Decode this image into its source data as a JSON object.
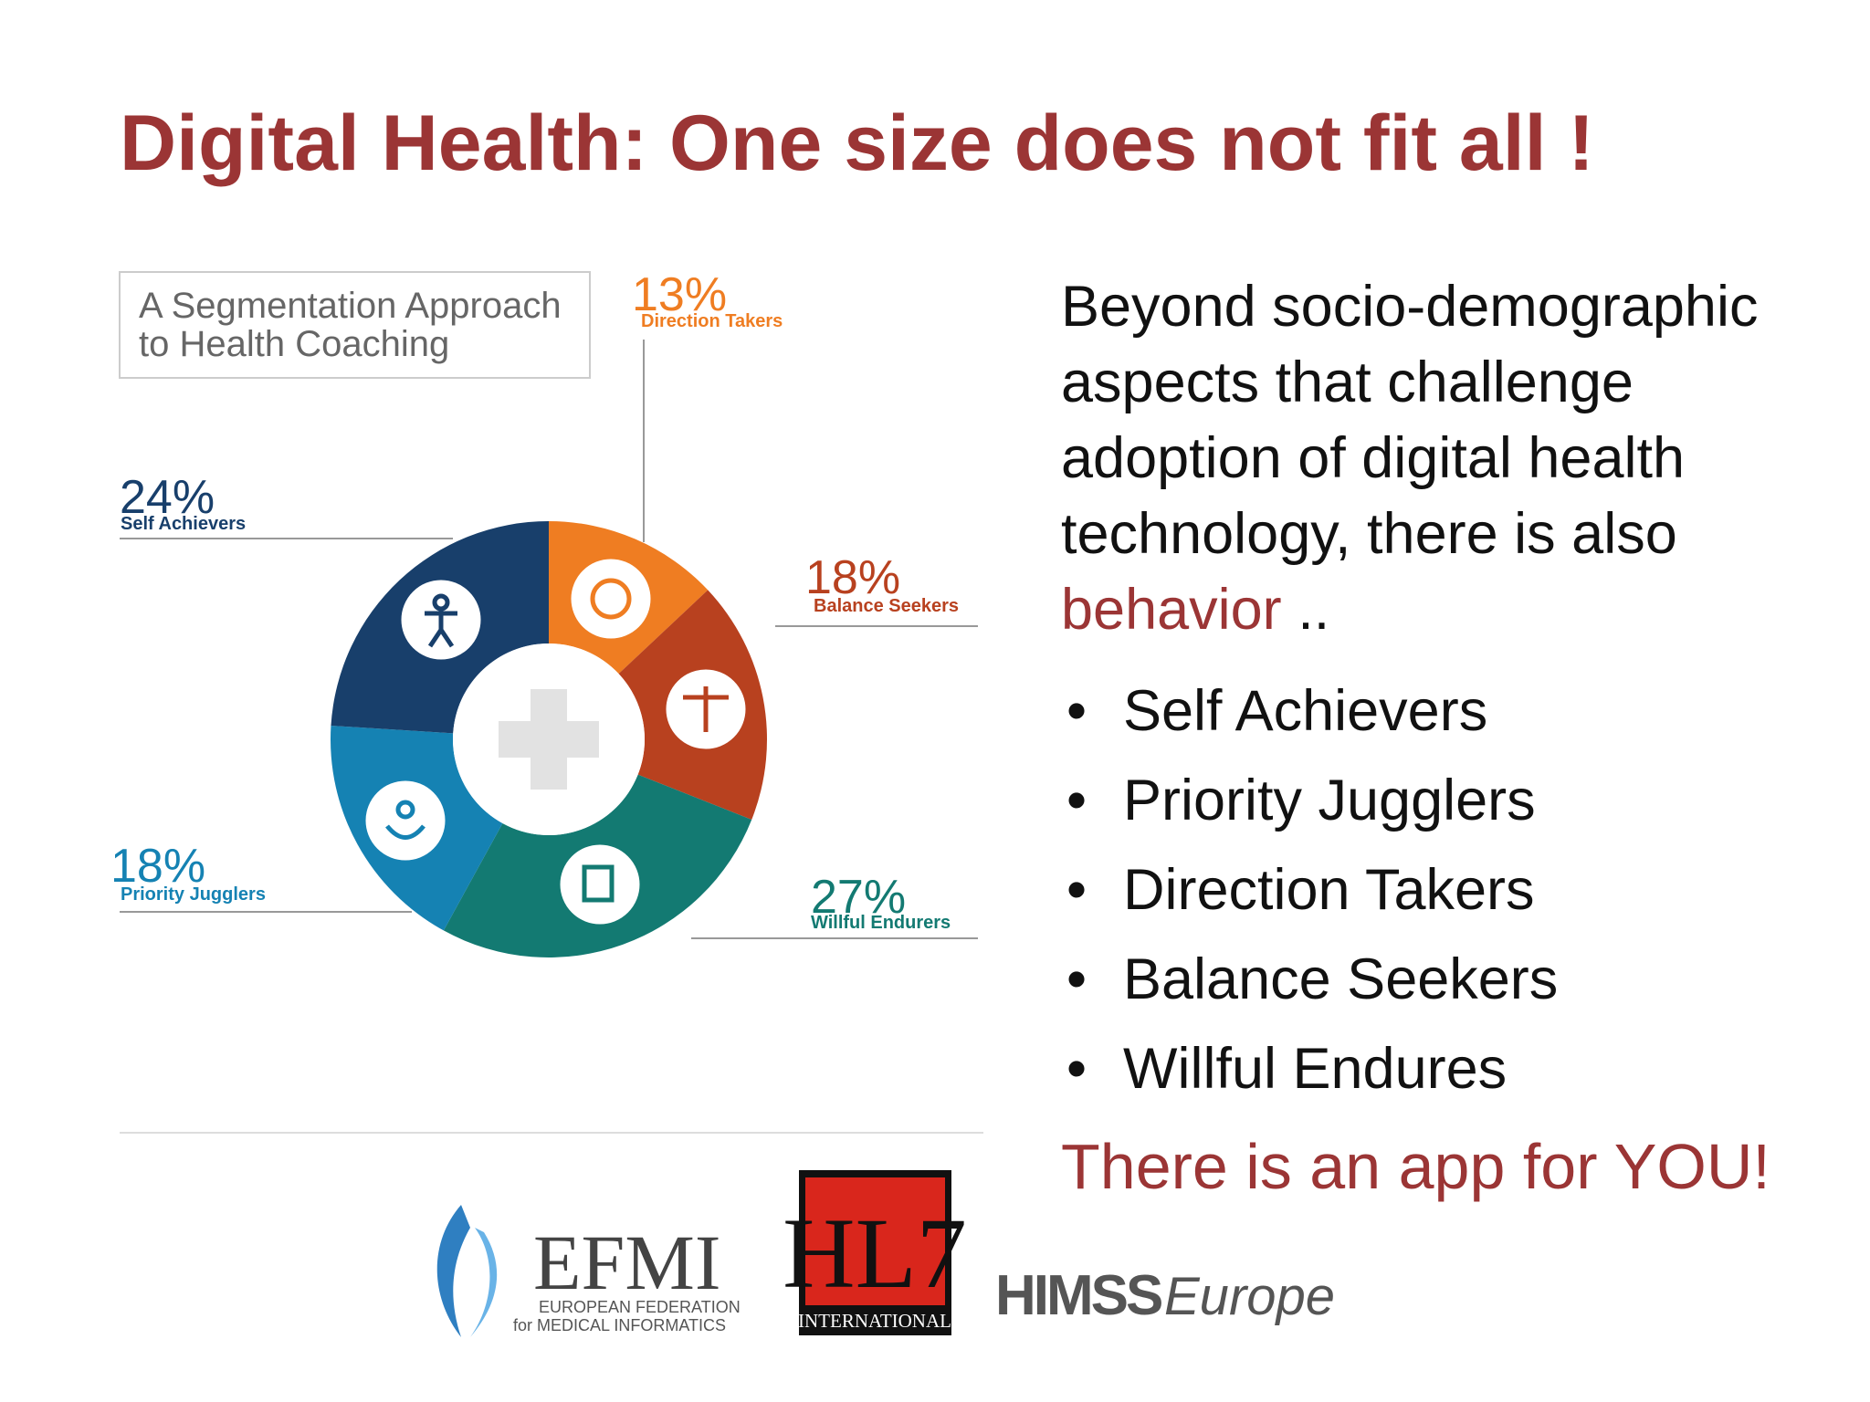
{
  "title": "Digital Health: One size does not fit all !",
  "infographic": {
    "title_lines": [
      "A Segmentation Approach",
      "to Health Coaching"
    ],
    "segments": [
      {
        "name": "Direction Takers",
        "value": 13,
        "label": "13%",
        "color": "#ef7d22"
      },
      {
        "name": "Balance Seekers",
        "value": 18,
        "label": "18%",
        "color": "#b8411f"
      },
      {
        "name": "Willful Endurers",
        "value": 27,
        "label": "27%",
        "color": "#137a72"
      },
      {
        "name": "Priority Jugglers",
        "value": 18,
        "label": "18%",
        "color": "#1582b3"
      },
      {
        "name": "Self Achievers",
        "value": 24,
        "label": "24%",
        "color": "#183f6b"
      }
    ]
  },
  "text_lines": [
    "Beyond socio-demographic",
    "aspects that challenge",
    "adoption of digital health",
    "technology, there is also"
  ],
  "highlight": "behavior",
  "ellipsis": "..",
  "bullets": [
    "Self Achievers",
    "Priority Jugglers",
    "Direction Takers",
    "Balance Seekers",
    "Willful Endures"
  ],
  "closing": "There is an app for YOU!",
  "logos": {
    "efmi": {
      "name": "EFMI",
      "line1": "EUROPEAN FEDERATION",
      "line2": "for MEDICAL INFORMATICS"
    },
    "hl7": {
      "mark": "HL7",
      "sub": "INTERNATIONAL"
    },
    "himss": {
      "name": "HIMSS",
      "region": "Europe"
    }
  }
}
